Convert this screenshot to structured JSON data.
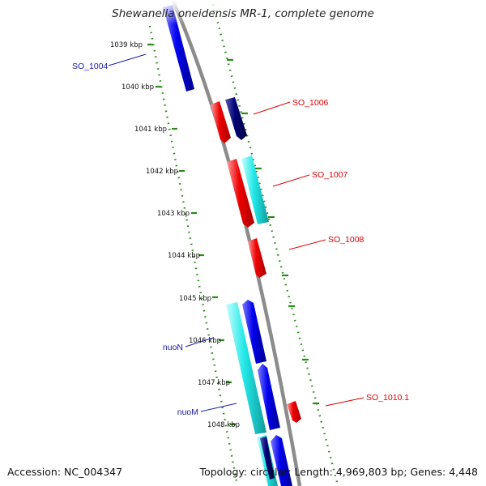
{
  "title": "Shewanella oneidensis MR-1, complete genome",
  "footer": {
    "accession_label": "Accession:",
    "accession": "NC_004347",
    "topology_label": "Topology:",
    "topology": "circular",
    "length_label": "Length:",
    "length": "4,969,803 bp",
    "genes_label": "Genes:",
    "genes": "4,448"
  },
  "colors": {
    "backbone": "#8c8c8c",
    "tick_dots": "#2a8a1a",
    "red": "#ee0000",
    "blue": "#0000ee",
    "cyan": "#22e8e8",
    "navy": "#000077",
    "label_red": "#dd0000",
    "label_blue": "#1a1aa8"
  },
  "scale_labels": [
    "1039 kbp",
    "1040 kbp",
    "1041 kbp",
    "1042 kbp",
    "1043 kbp",
    "1044 kbp",
    "1045 kbp",
    "1046 kbp",
    "1047 kbp",
    "1048 kbp"
  ],
  "gene_labels": [
    {
      "id": "so1004",
      "text": "SO_1004",
      "color": "blue"
    },
    {
      "id": "so1006",
      "text": "SO_1006",
      "color": "red"
    },
    {
      "id": "so1007",
      "text": "SO_1007",
      "color": "red"
    },
    {
      "id": "so1008",
      "text": "SO_1008",
      "color": "red"
    },
    {
      "id": "nuoN",
      "text": "nuoN",
      "color": "blue"
    },
    {
      "id": "nuoM",
      "text": "nuoM",
      "color": "blue"
    },
    {
      "id": "so1010",
      "text": "SO_1010.1",
      "color": "red"
    }
  ]
}
